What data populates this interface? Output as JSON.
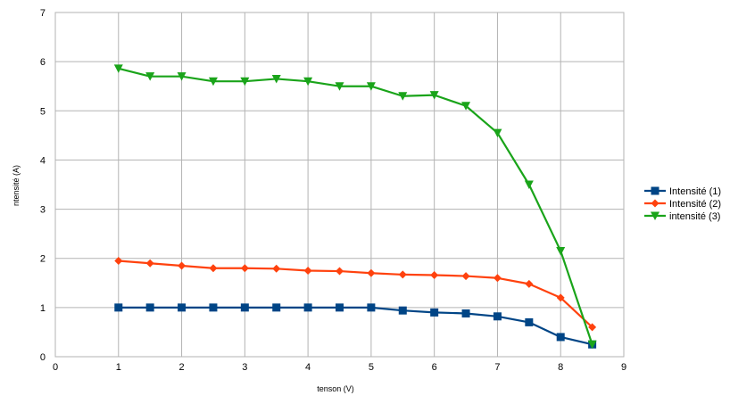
{
  "chart_data": {
    "type": "line",
    "xlabel": "tenson (V)",
    "ylabel": "ntensité (A)",
    "xlim": [
      0,
      9
    ],
    "ylim": [
      0,
      7
    ],
    "xticks": [
      "0",
      "1",
      "2",
      "3",
      "4",
      "5",
      "6",
      "7",
      "8",
      "9"
    ],
    "yticks": [
      "0",
      "1",
      "2",
      "3",
      "4",
      "5",
      "6",
      "7"
    ],
    "grid": true,
    "legend_position": "right",
    "x": [
      1,
      1.5,
      2,
      2.5,
      3,
      3.5,
      4,
      4.5,
      5,
      5.5,
      6,
      6.5,
      7,
      7.5,
      8,
      8.5
    ],
    "series": [
      {
        "name": "Intensité (1)",
        "color": "#004586",
        "marker": "square",
        "values": [
          1,
          1,
          1,
          1,
          1,
          1,
          1,
          1,
          1,
          0.94,
          0.9,
          0.88,
          0.82,
          0.7,
          0.4,
          0.25
        ]
      },
      {
        "name": "Intensité (2)",
        "color": "#ff420e",
        "marker": "diamond",
        "values": [
          1.95,
          1.9,
          1.85,
          1.8,
          1.8,
          1.79,
          1.75,
          1.74,
          1.7,
          1.67,
          1.66,
          1.64,
          1.6,
          1.48,
          1.2,
          0.6
        ]
      },
      {
        "name": "intensité (3)",
        "color": "#1aa41a",
        "marker": "triangle-down",
        "values": [
          5.86,
          5.7,
          5.7,
          5.6,
          5.6,
          5.65,
          5.6,
          5.5,
          5.5,
          5.3,
          5.32,
          5.1,
          4.55,
          3.5,
          2.15,
          0.25
        ]
      }
    ]
  }
}
